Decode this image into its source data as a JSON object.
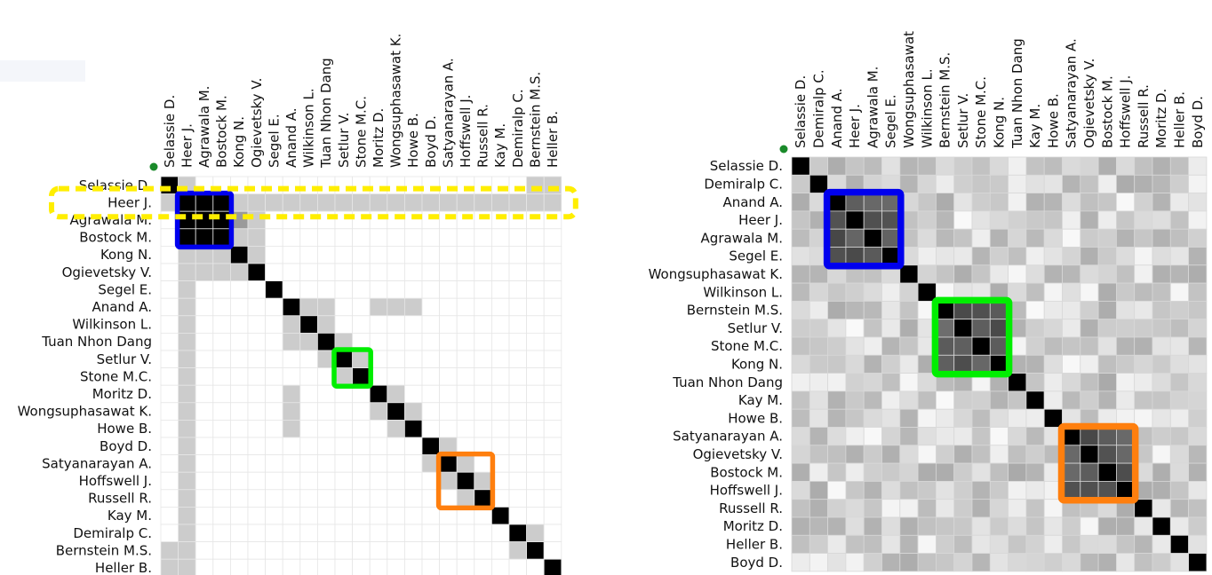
{
  "ghost_tab": {
    "text": ""
  },
  "matrices": [
    {
      "name": "binary-matrix",
      "row_labels": [
        "Selassie D.",
        "Heer J.",
        "Agrawala M.",
        "Bostock M.",
        "Kong N.",
        "Ogievetsky V.",
        "Segel E.",
        "Anand A.",
        "Wilkinson L.",
        "Tuan Nhon Dang",
        "Setlur V.",
        "Stone M.C.",
        "Moritz D.",
        "Wongsuphasawat K.",
        "Howe B.",
        "Boyd D.",
        "Satyanarayan A.",
        "Hoffswell J.",
        "Russell R.",
        "Kay M.",
        "Demiralp C.",
        "Bernstein M.S.",
        "Heller B."
      ],
      "col_labels": [
        "Selassie D.",
        "Heer J.",
        "Agrawala M.",
        "Bostock M.",
        "Kong N.",
        "Ogievetsky V.",
        "Segel E.",
        "Anand A.",
        "Wilkinson L.",
        "Tuan Nhon Dang",
        "Setlur V.",
        "Stone M.C.",
        "Moritz D.",
        "Wongsuphasawat K.",
        "Howe B.",
        "Boyd D.",
        "Satyanarayan A.",
        "Hoffswell J.",
        "Russell R.",
        "Kay M.",
        "Demiralp C.",
        "Bernstein M.S.",
        "Heller B."
      ],
      "groups": [
        {
          "name": "blue",
          "color": "#0000ee",
          "start": 1,
          "end": 3
        },
        {
          "name": "green",
          "color": "#00ee00",
          "start": 10,
          "end": 11
        },
        {
          "name": "orange",
          "color": "#ff7f0e",
          "start": 16,
          "end": 18
        }
      ],
      "highlight_row": {
        "index": 1,
        "color": "#ffee00"
      }
    },
    {
      "name": "weighted-matrix",
      "row_labels": [
        "Selassie D.",
        "Demiralp C.",
        "Anand A.",
        "Heer J.",
        "Agrawala M.",
        "Segel E.",
        "Wongsuphasawat K.",
        "Wilkinson L.",
        "Bernstein M.S.",
        "Setlur V.",
        "Stone M.C.",
        "Kong N.",
        "Tuan Nhon Dang",
        "Kay M.",
        "Howe B.",
        "Satyanarayan A.",
        "Ogievetsky V.",
        "Bostock M.",
        "Hoffswell J.",
        "Russell R.",
        "Moritz D.",
        "Heller B.",
        "Boyd D."
      ],
      "col_labels": [
        "Selassie D.",
        "Demiralp C.",
        "Anand A.",
        "Heer J.",
        "Agrawala M.",
        "Segel E.",
        "Wongsuphasawat",
        "Wilkinson L.",
        "Bernstein M.S.",
        "Setlur V.",
        "Stone M.C.",
        "Kong N.",
        "Tuan Nhon Dang",
        "Kay M.",
        "Howe B.",
        "Satyanarayan A.",
        "Ogievetsky V.",
        "Bostock M.",
        "Hoffswell J.",
        "Russell R.",
        "Moritz D.",
        "Heller B.",
        "Boyd D."
      ],
      "groups": [
        {
          "name": "blue",
          "color": "#0000ee",
          "start": 2,
          "end": 5
        },
        {
          "name": "green",
          "color": "#00ee00",
          "start": 8,
          "end": 11
        },
        {
          "name": "orange",
          "color": "#ff7f0e",
          "start": 15,
          "end": 18
        }
      ]
    }
  ],
  "colors": {
    "diagonal": "#000000",
    "grid": "#e3e3e3",
    "marker": "#1a8a2a"
  }
}
